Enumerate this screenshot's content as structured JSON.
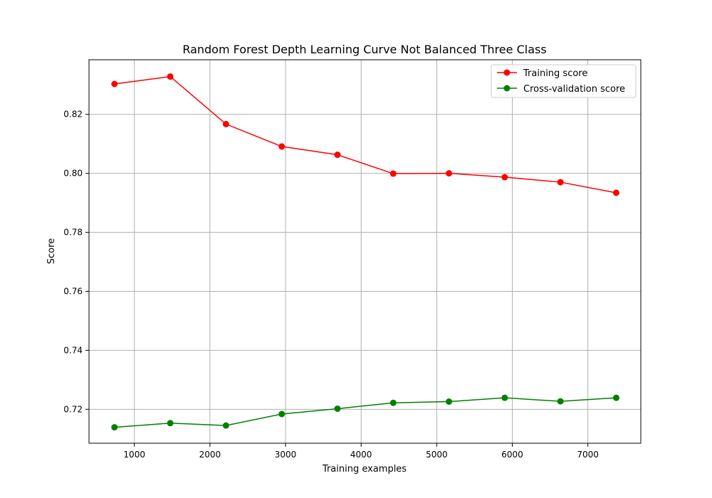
{
  "chart_data": {
    "type": "line",
    "title": "Random Forest Depth Learning Curve Not Balanced Three Class",
    "xlabel": "Training examples",
    "ylabel": "Score",
    "xlim": [
      400,
      7700
    ],
    "ylim": [
      0.7085,
      0.8385
    ],
    "x_ticks": [
      1000,
      2000,
      3000,
      4000,
      5000,
      6000,
      7000
    ],
    "y_ticks": [
      0.72,
      0.74,
      0.76,
      0.78,
      0.8,
      0.82
    ],
    "y_tick_labels": [
      "0.72",
      "0.74",
      "0.76",
      "0.78",
      "0.80",
      "0.82"
    ],
    "grid": true,
    "legend_position": "top-right",
    "x": [
      737,
      1475,
      2212,
      2950,
      3687,
      4425,
      5162,
      5900,
      6637,
      7375
    ],
    "series": [
      {
        "name": "Training score",
        "color": "#ff0000",
        "values": [
          0.8303,
          0.8328,
          0.8167,
          0.8091,
          0.8063,
          0.7999,
          0.8,
          0.7987,
          0.797,
          0.7934
        ]
      },
      {
        "name": "Cross-validation score",
        "color": "#008000",
        "values": [
          0.7139,
          0.7153,
          0.7145,
          0.7184,
          0.7202,
          0.7222,
          0.7226,
          0.7239,
          0.7227,
          0.7239
        ]
      }
    ]
  }
}
